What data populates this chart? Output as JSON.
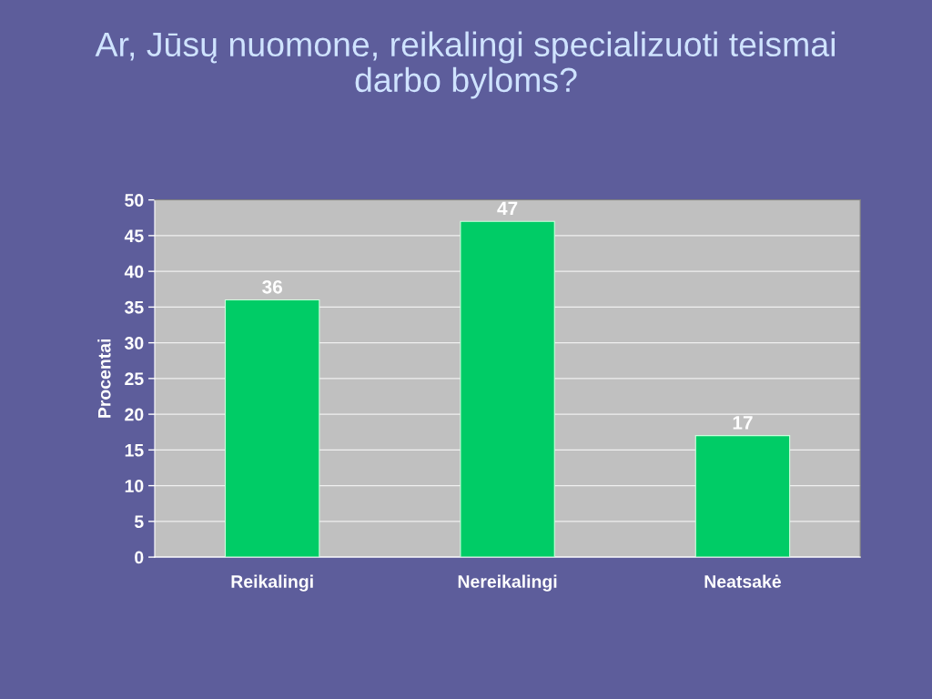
{
  "chart_data": {
    "type": "bar",
    "title": "Ar, Jūsų nuomone, reikalingi specializuoti teismai darbo byloms?",
    "ylabel": "Procentai",
    "categories": [
      "Reikalingi",
      "Nereikalingi",
      "Neatsakė"
    ],
    "values": [
      36,
      47,
      17
    ],
    "color": "#00cc66",
    "ylim": [
      0,
      50
    ],
    "yticks": [
      0,
      5,
      10,
      15,
      20,
      25,
      30,
      35,
      40,
      45,
      50
    ],
    "grid": "y",
    "data_labels": true
  }
}
